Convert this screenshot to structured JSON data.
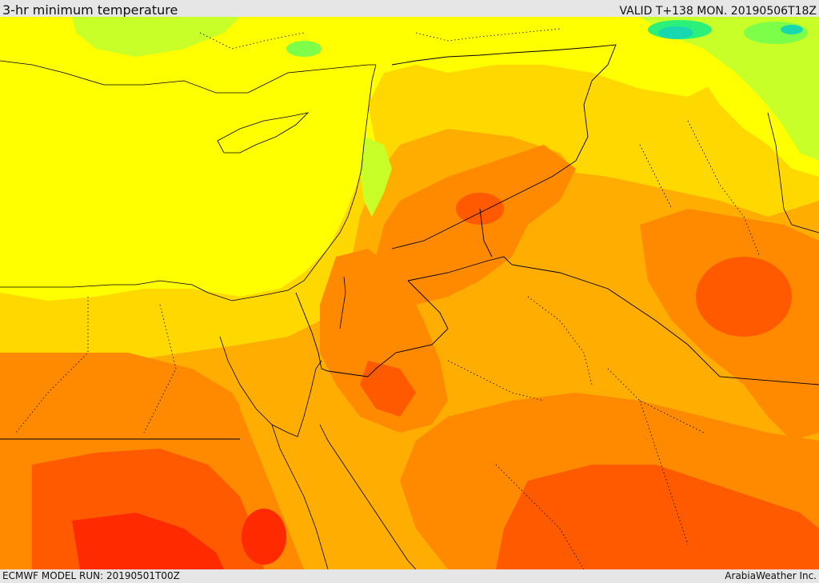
{
  "header": {
    "title": "3-hr minimum temperature",
    "valid": "VALID T+138 MON. 20190506T18Z"
  },
  "footer": {
    "model_run": "ECMWF MODEL RUN: 20190501T00Z",
    "credit": "ArabiaWeather Inc."
  },
  "map": {
    "field": "3-hr minimum temperature",
    "region": "Eastern Mediterranean / Middle East",
    "palette": [
      "#ff2a00",
      "#ff5a00",
      "#ff8a00",
      "#ffad00",
      "#ffd800",
      "#ffff00",
      "#c8ff28",
      "#7dff4a",
      "#2bf07a",
      "#18d8b0"
    ]
  }
}
